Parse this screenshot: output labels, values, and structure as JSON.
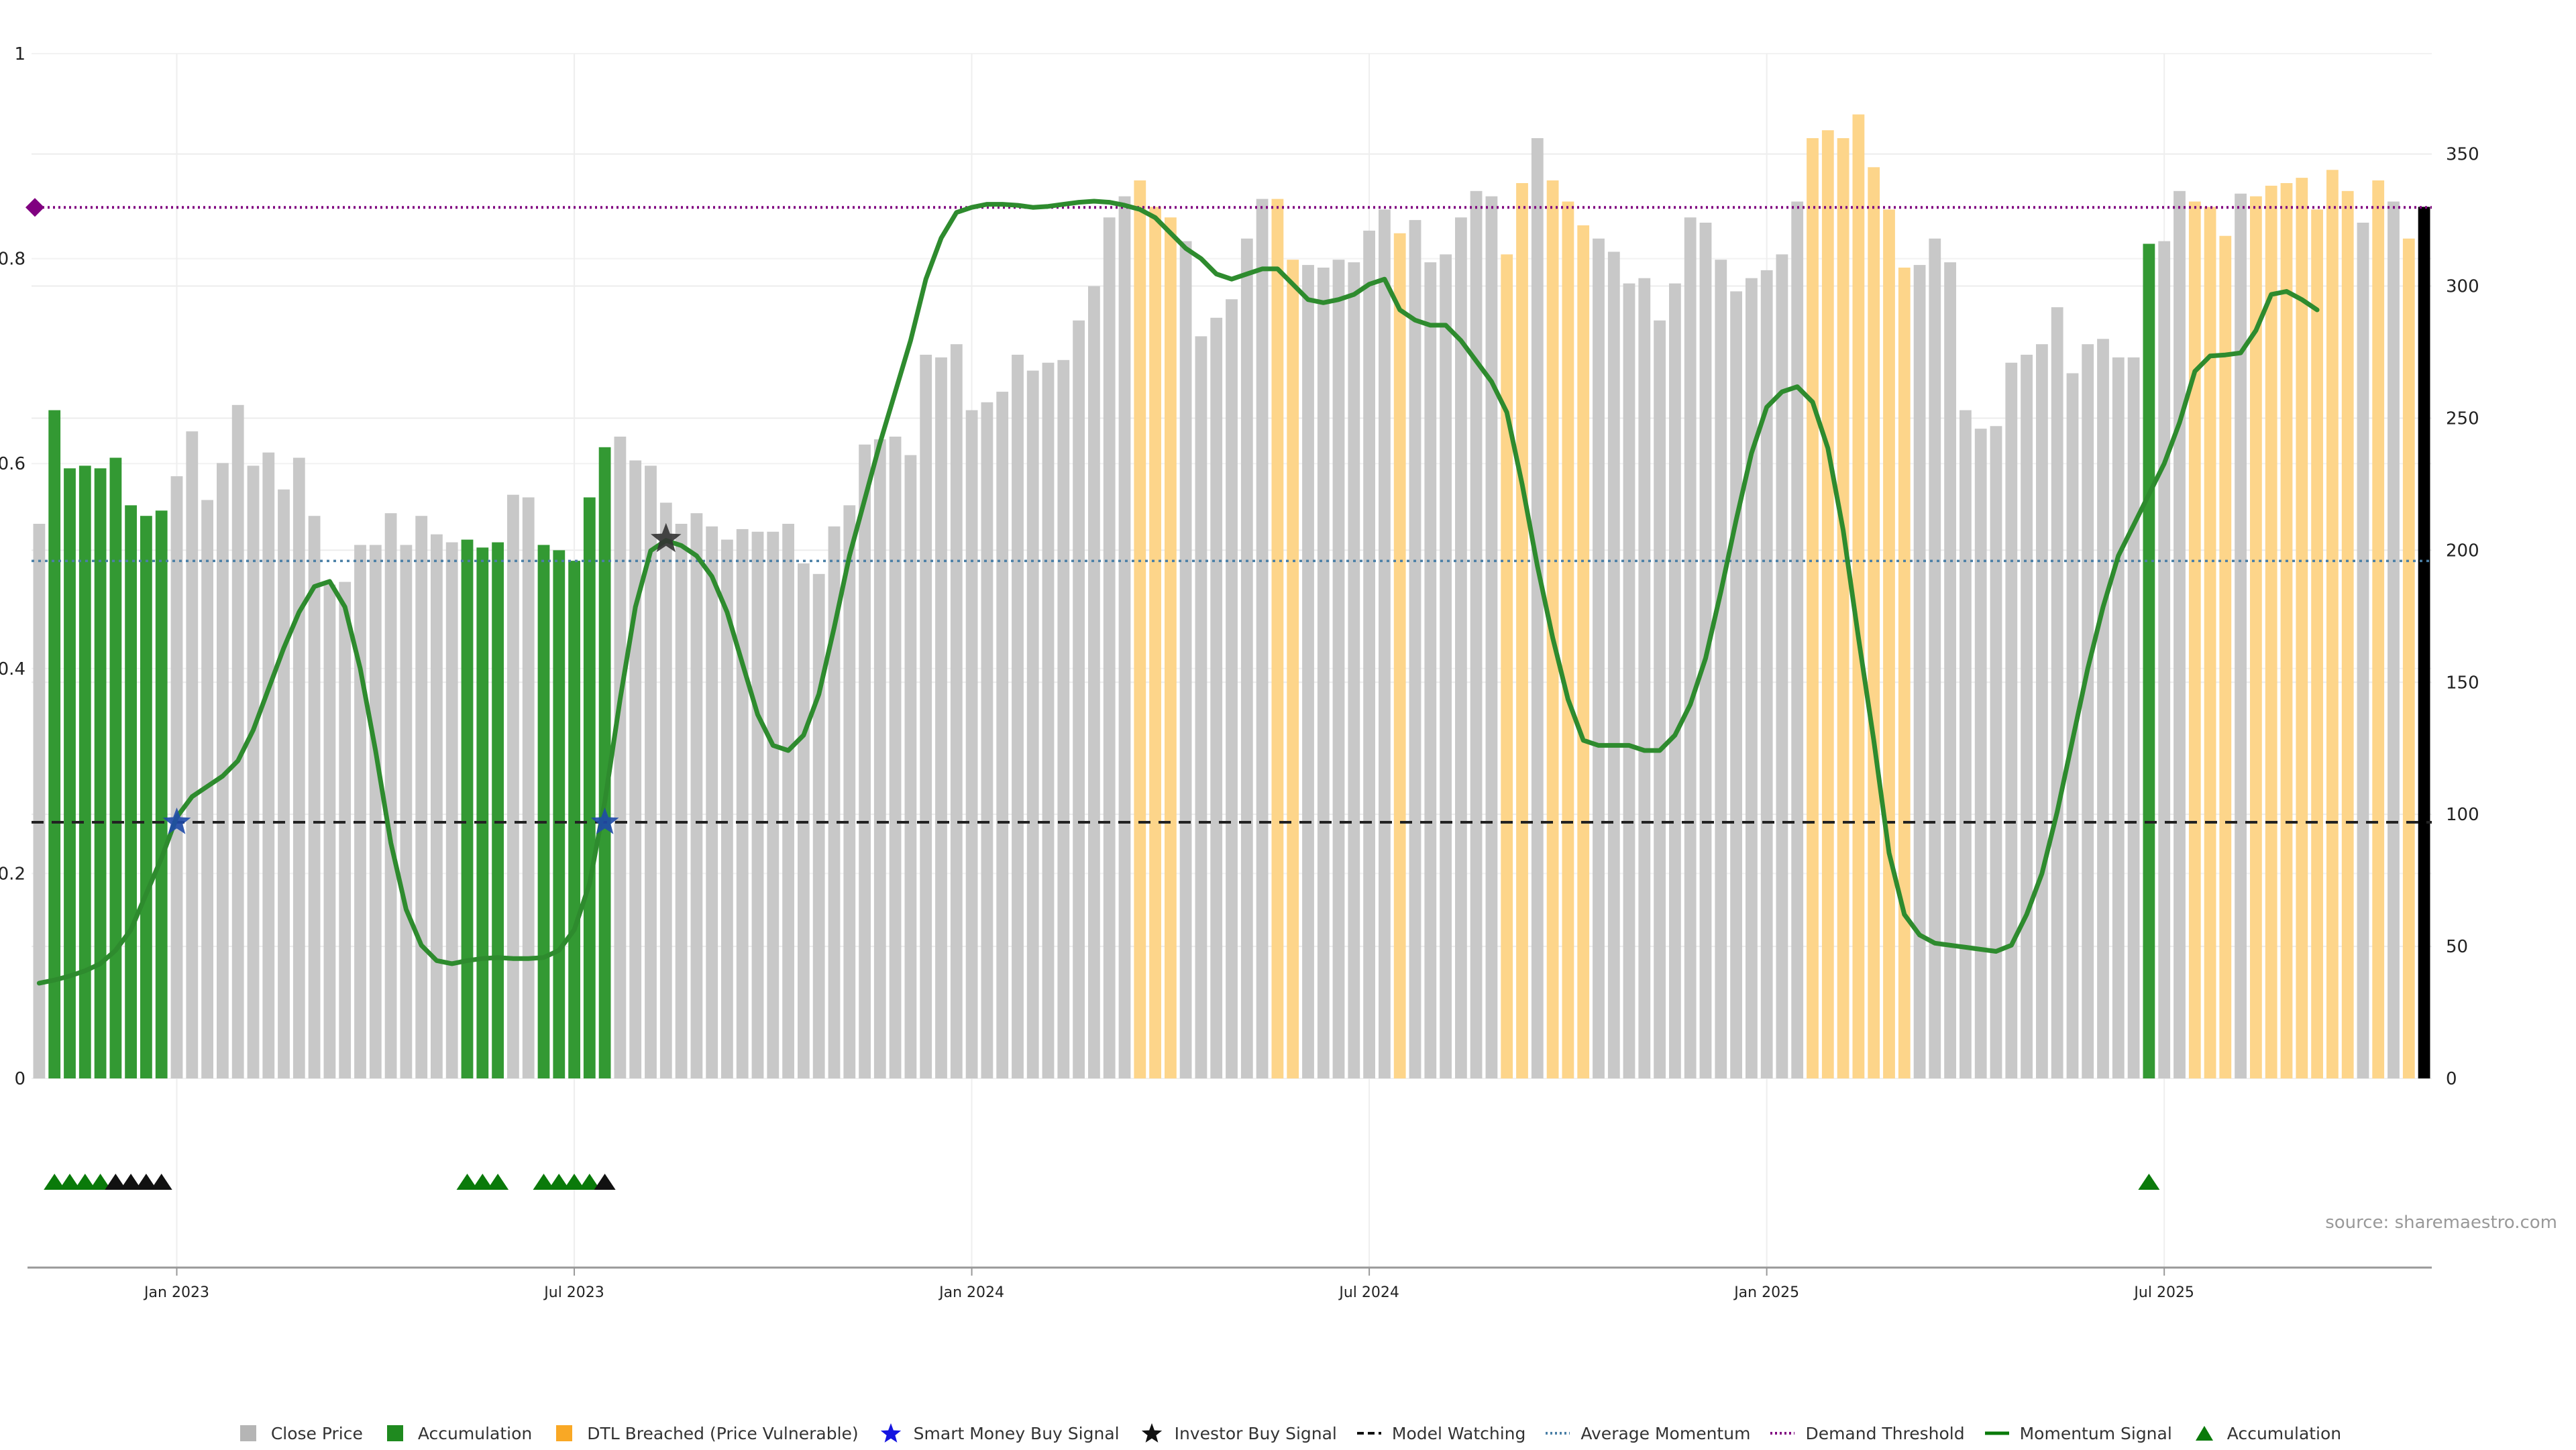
{
  "chart_data": {
    "type": "bar",
    "source_text": "source: sharemaestro.com",
    "left_axis": {
      "ticks": [
        "1",
        "0.8",
        "0.6",
        "0.4",
        "0.2",
        "0"
      ],
      "values": [
        1,
        0.8,
        0.6,
        0.4,
        0.2,
        0
      ],
      "ylim": [
        0,
        1
      ]
    },
    "right_axis": {
      "ticks": [
        "350",
        "300",
        "250",
        "200",
        "150",
        "100",
        "50",
        "0"
      ],
      "values": [
        350,
        300,
        250,
        200,
        150,
        100,
        50,
        0
      ],
      "ylim": [
        0,
        388
      ]
    },
    "x_ticks": [
      "Jan 2023",
      "Jul 2023",
      "Jan 2024",
      "Jul 2024",
      "Jan 2025",
      "Jul 2025"
    ],
    "x_tick_index": [
      9,
      35,
      61,
      87,
      113,
      139
    ],
    "thresholds": {
      "demand": 0.85,
      "average_momentum": 0.505,
      "model_watching": 0.25
    },
    "colors": {
      "close": "#c8c8c8",
      "accumulation": "#339933",
      "dtl": "#fdd58a",
      "demand": "#800080",
      "average": "#4a7fa6",
      "model": "#222222",
      "momentum": "#2e8b2e",
      "momentum_dark": "#0a7a0a",
      "triangle": "#0a7a0a"
    },
    "close_prices": [
      210,
      253,
      231,
      232,
      231,
      235,
      217,
      213,
      215,
      228,
      245,
      219,
      233,
      255,
      232,
      237,
      223,
      235,
      213,
      187,
      188,
      202,
      202,
      214,
      202,
      213,
      206,
      203,
      204,
      201,
      203,
      221,
      220,
      202,
      200,
      196,
      220,
      239,
      243,
      234,
      232,
      218,
      210,
      214,
      209,
      204,
      208,
      207,
      207,
      210,
      195,
      191,
      209,
      217,
      240,
      242,
      243,
      236,
      274,
      273,
      278,
      253,
      256,
      260,
      274,
      268,
      271,
      272,
      287,
      300,
      326,
      334,
      340,
      330,
      326,
      317,
      281,
      288,
      295,
      318,
      333,
      333,
      310,
      308,
      307,
      310,
      309,
      321,
      329,
      320,
      325,
      309,
      312,
      326,
      336,
      334,
      312,
      339,
      356,
      340,
      332,
      323,
      318,
      313,
      301,
      303,
      287,
      301,
      326,
      324,
      310,
      298,
      303,
      306,
      312,
      332,
      356,
      359,
      356,
      365,
      345,
      329,
      307,
      308,
      318,
      309,
      253,
      246,
      247,
      271,
      274,
      278,
      292,
      267,
      278,
      280,
      273,
      273,
      316,
      317,
      336,
      332,
      330,
      319,
      335,
      334,
      338,
      339,
      341,
      329,
      344,
      336,
      324,
      340,
      332,
      318,
      330
    ],
    "bar_kind": [
      "c",
      "a",
      "a",
      "a",
      "a",
      "a",
      "a",
      "a",
      "a",
      "c",
      "c",
      "c",
      "c",
      "c",
      "c",
      "c",
      "c",
      "c",
      "c",
      "c",
      "c",
      "c",
      "c",
      "c",
      "c",
      "c",
      "c",
      "c",
      "a",
      "a",
      "a",
      "c",
      "c",
      "a",
      "a",
      "a",
      "a",
      "a",
      "c",
      "c",
      "c",
      "c",
      "c",
      "c",
      "c",
      "c",
      "c",
      "c",
      "c",
      "c",
      "c",
      "c",
      "c",
      "c",
      "c",
      "c",
      "c",
      "c",
      "c",
      "c",
      "c",
      "c",
      "c",
      "c",
      "c",
      "c",
      "c",
      "c",
      "c",
      "c",
      "c",
      "c",
      "d",
      "d",
      "d",
      "c",
      "c",
      "c",
      "c",
      "c",
      "c",
      "d",
      "d",
      "c",
      "c",
      "c",
      "c",
      "c",
      "c",
      "d",
      "c",
      "c",
      "c",
      "c",
      "c",
      "c",
      "d",
      "d",
      "c",
      "d",
      "d",
      "d",
      "c",
      "c",
      "c",
      "c",
      "c",
      "c",
      "c",
      "c",
      "c",
      "c",
      "c",
      "c",
      "c",
      "c",
      "d",
      "d",
      "d",
      "d",
      "d",
      "d",
      "d",
      "c",
      "c",
      "c",
      "c",
      "c",
      "c",
      "c",
      "c",
      "c",
      "c",
      "c",
      "c",
      "c",
      "c",
      "c",
      "a",
      "c",
      "c",
      "d",
      "d",
      "d",
      "c",
      "d",
      "d",
      "d",
      "d",
      "d",
      "d",
      "d",
      "c",
      "d",
      "c",
      "d"
    ],
    "momentum": [
      0.093,
      0.096,
      0.1,
      0.105,
      0.112,
      0.125,
      0.145,
      0.18,
      0.215,
      0.255,
      0.275,
      0.285,
      0.295,
      0.31,
      0.34,
      0.38,
      0.42,
      0.455,
      0.48,
      0.485,
      0.46,
      0.4,
      0.32,
      0.23,
      0.165,
      0.13,
      0.115,
      0.112,
      0.115,
      0.117,
      0.118,
      0.117,
      0.117,
      0.118,
      0.125,
      0.145,
      0.19,
      0.27,
      0.37,
      0.46,
      0.515,
      0.525,
      0.52,
      0.51,
      0.49,
      0.455,
      0.405,
      0.355,
      0.325,
      0.32,
      0.335,
      0.375,
      0.44,
      0.51,
      0.565,
      0.62,
      0.67,
      0.72,
      0.78,
      0.82,
      0.845,
      0.85,
      0.853,
      0.853,
      0.852,
      0.85,
      0.851,
      0.853,
      0.855,
      0.856,
      0.855,
      0.852,
      0.848,
      0.84,
      0.825,
      0.81,
      0.8,
      0.785,
      0.78,
      0.785,
      0.79,
      0.79,
      0.775,
      0.76,
      0.757,
      0.76,
      0.765,
      0.775,
      0.78,
      0.75,
      0.74,
      0.735,
      0.735,
      0.72,
      0.7,
      0.68,
      0.65,
      0.58,
      0.5,
      0.43,
      0.37,
      0.33,
      0.325,
      0.325,
      0.325,
      0.32,
      0.32,
      0.335,
      0.365,
      0.41,
      0.475,
      0.545,
      0.61,
      0.655,
      0.67,
      0.675,
      0.66,
      0.615,
      0.535,
      0.43,
      0.33,
      0.22,
      0.16,
      0.14,
      0.132,
      0.13,
      0.128,
      0.126,
      0.124,
      0.13,
      0.16,
      0.2,
      0.26,
      0.33,
      0.4,
      0.46,
      0.51,
      0.54,
      0.57,
      0.6,
      0.64,
      0.69,
      0.705,
      0.706,
      0.708,
      0.73,
      0.765,
      0.768,
      0.76,
      0.75
    ],
    "smart_money_signals": [
      9,
      37
    ],
    "investor_signals": [
      41
    ],
    "accumulation_markers": [
      1,
      2,
      3,
      4,
      28,
      29,
      30,
      33,
      34,
      35,
      36,
      138
    ],
    "investor_markers": [
      5,
      6,
      7,
      8,
      37
    ]
  },
  "legend": [
    {
      "label": "Close Price",
      "icon": "square-icon",
      "color": "#b5b5b5"
    },
    {
      "label": "Accumulation",
      "icon": "square-icon",
      "color": "#1f8a1f"
    },
    {
      "label": "DTL Breached (Price Vulnerable)",
      "icon": "square-icon",
      "color": "#f9a825"
    },
    {
      "label": "Smart Money Buy Signal",
      "icon": "star-icon",
      "color": "#1515e0"
    },
    {
      "label": "Investor Buy Signal",
      "icon": "star-icon",
      "color": "#111111"
    },
    {
      "label": "Model Watching",
      "icon": "dash-line-icon",
      "color": "#111111"
    },
    {
      "label": "Average Momentum",
      "icon": "dotted-line-icon",
      "color": "#4a7fa6"
    },
    {
      "label": "Demand Threshold",
      "icon": "dotted-line-icon",
      "color": "#800080"
    },
    {
      "label": "Momentum Signal",
      "icon": "solid-line-icon",
      "color": "#0a7a0a"
    },
    {
      "label": "Accumulation",
      "icon": "triangle-icon",
      "color": "#0a7a0a"
    }
  ]
}
